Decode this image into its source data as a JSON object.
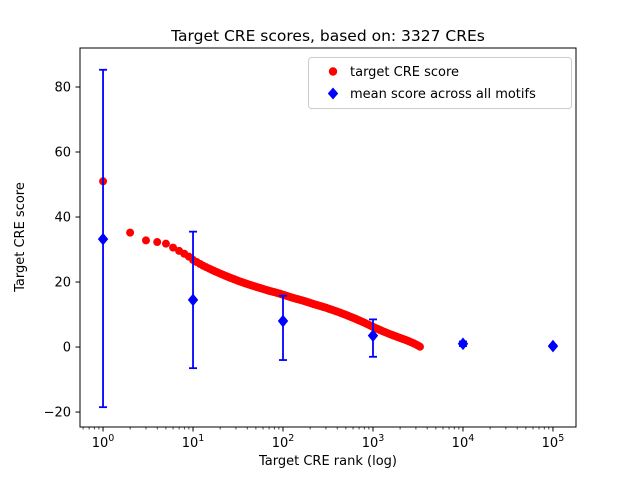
{
  "title": "Target CRE scores, based on: 3327 CREs",
  "colors": {
    "target_series": "#ff0000",
    "mean_series": "#0000ff",
    "axes": "#000000",
    "legend_border": "#cccccc",
    "background": "#ffffff"
  },
  "chart_data": {
    "type": "scatter",
    "title": "Target CRE scores, based on: 3327 CREs",
    "xlabel": "Target CRE rank (log)",
    "ylabel": "Target CRE score",
    "x_scale": "log",
    "xlim_log10": [
      -0.256,
      5.256
    ],
    "ylim": [
      -24.6,
      92
    ],
    "y_ticks": [
      -20,
      0,
      20,
      40,
      60,
      80
    ],
    "x_tick_exponents": [
      0,
      1,
      2,
      3,
      4,
      5
    ],
    "grid": false,
    "legend_position": "upper right",
    "n_cres": 3327,
    "series": [
      {
        "name": "target CRE score",
        "marker": "circle",
        "color": "#ff0000",
        "description": "score vs rank, dense descending curve from rank 1 to 3327",
        "anchors": [
          [
            1,
            51.0
          ],
          [
            2,
            35.2
          ],
          [
            3,
            32.8
          ],
          [
            4,
            32.3
          ],
          [
            5,
            31.8
          ],
          [
            6,
            30.6
          ],
          [
            7,
            29.6
          ],
          [
            8,
            28.7
          ],
          [
            9,
            27.8
          ],
          [
            10,
            26.8
          ],
          [
            13,
            25.0
          ],
          [
            16,
            23.8
          ],
          [
            20,
            22.6
          ],
          [
            26,
            21.3
          ],
          [
            33,
            20.2
          ],
          [
            42,
            19.2
          ],
          [
            55,
            18.2
          ],
          [
            70,
            17.3
          ],
          [
            85,
            16.7
          ],
          [
            100,
            16.1
          ],
          [
            130,
            15.1
          ],
          [
            170,
            14.2
          ],
          [
            220,
            13.2
          ],
          [
            300,
            12.1
          ],
          [
            400,
            10.9
          ],
          [
            500,
            9.9
          ],
          [
            650,
            8.6
          ],
          [
            800,
            7.5
          ],
          [
            1000,
            6.2
          ],
          [
            1300,
            4.8
          ],
          [
            1600,
            3.8
          ],
          [
            2000,
            2.8
          ],
          [
            2400,
            2.0
          ],
          [
            2800,
            1.2
          ],
          [
            3100,
            0.6
          ],
          [
            3327,
            0.1
          ]
        ]
      },
      {
        "name": "mean score across all motifs",
        "marker": "diamond",
        "color": "#0000ff",
        "points": [
          {
            "x": 1,
            "y": 33.2,
            "ylow": -18.5,
            "yhigh": 85.3
          },
          {
            "x": 10,
            "y": 14.5,
            "ylow": -6.5,
            "yhigh": 35.5
          },
          {
            "x": 100,
            "y": 8.0,
            "ylow": -4.0,
            "yhigh": 15.8
          },
          {
            "x": 1000,
            "y": 3.5,
            "ylow": -3.0,
            "yhigh": 8.5
          },
          {
            "x": 10000,
            "y": 1.0,
            "ylow": 0.3,
            "yhigh": 1.7
          },
          {
            "x": 100000,
            "y": 0.3,
            "ylow": 0.0,
            "yhigh": 0.6
          }
        ]
      }
    ]
  }
}
